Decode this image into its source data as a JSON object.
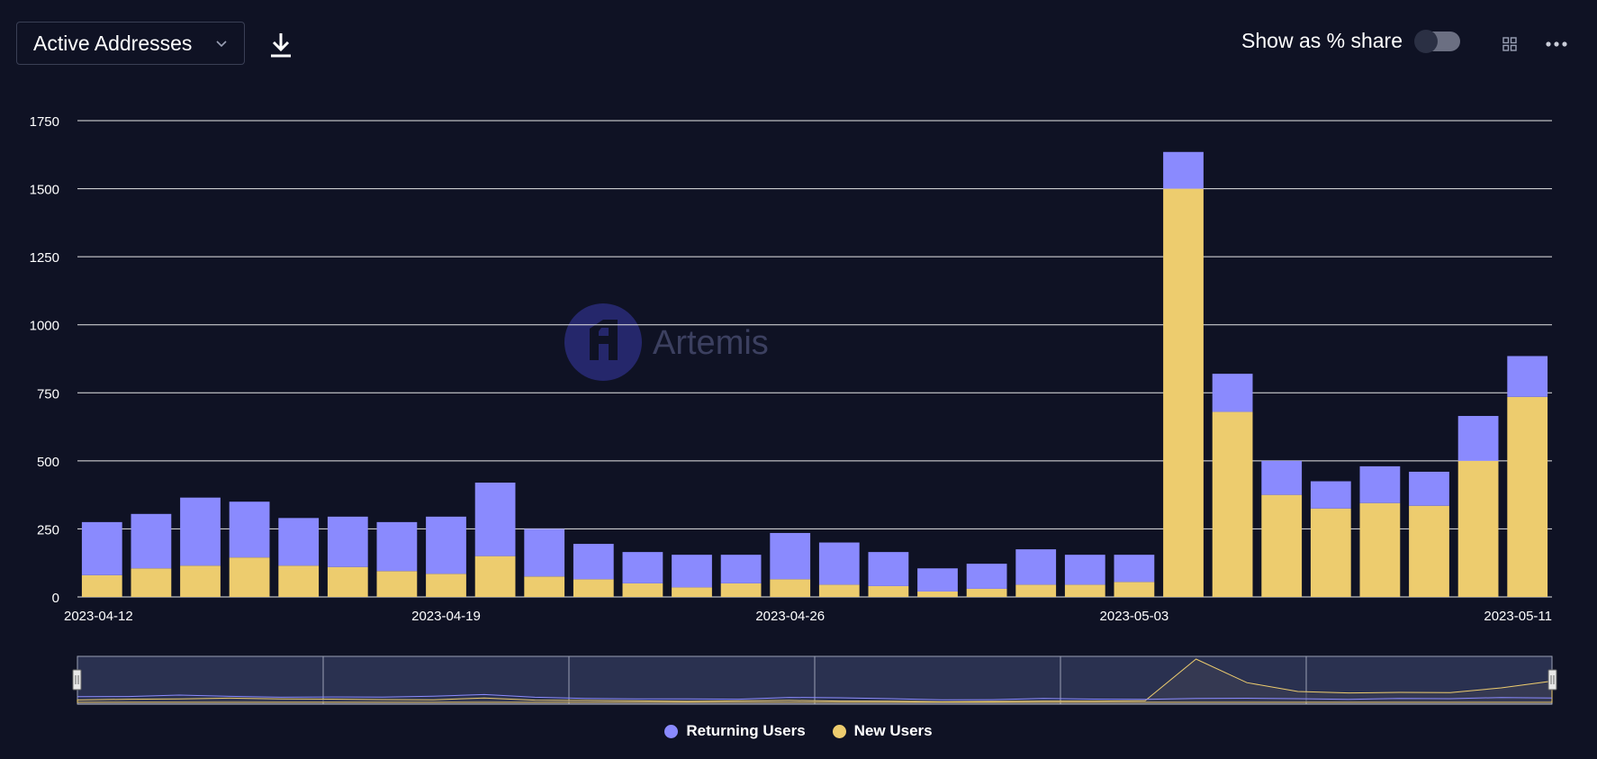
{
  "header": {
    "metric_label": "Active Addresses",
    "share_label": "Show as % share",
    "share_enabled": false
  },
  "icons": {
    "select_chevron": "chevron-down-icon",
    "download": "download-icon",
    "grid": "grid-icon",
    "more": "more-horizontal-icon"
  },
  "watermark": {
    "text": "Artemis"
  },
  "colors": {
    "background": "#0f1224",
    "returning": "#8a8afe",
    "new": "#edcc6e",
    "gridline": "#e6e6e6"
  },
  "chart_data": {
    "type": "bar",
    "stacked": true,
    "x": [
      "2023-04-12",
      "2023-04-13",
      "2023-04-14",
      "2023-04-15",
      "2023-04-16",
      "2023-04-17",
      "2023-04-18",
      "2023-04-19",
      "2023-04-20",
      "2023-04-21",
      "2023-04-22",
      "2023-04-23",
      "2023-04-24",
      "2023-04-25",
      "2023-04-26",
      "2023-04-27",
      "2023-04-28",
      "2023-04-29",
      "2023-04-30",
      "2023-05-01",
      "2023-05-02",
      "2023-05-03",
      "2023-05-04",
      "2023-05-05",
      "2023-05-06",
      "2023-05-07",
      "2023-05-08",
      "2023-05-09",
      "2023-05-10",
      "2023-05-11"
    ],
    "x_tick_labels": [
      "2023-04-12",
      "2023-04-19",
      "2023-04-26",
      "2023-05-03",
      "2023-05-11"
    ],
    "y_ticks": [
      0,
      250,
      500,
      750,
      1000,
      1250,
      1500,
      1750
    ],
    "ylim": [
      0,
      1750
    ],
    "grid": true,
    "legend_position": "bottom",
    "series": [
      {
        "name": "New Users",
        "color": "#edcc6e",
        "values": [
          80,
          105,
          115,
          145,
          115,
          110,
          95,
          85,
          150,
          75,
          65,
          50,
          35,
          50,
          65,
          45,
          40,
          20,
          30,
          45,
          45,
          55,
          1500,
          680,
          375,
          325,
          345,
          335,
          500,
          735
        ]
      },
      {
        "name": "Returning Users",
        "color": "#8a8afe",
        "values": [
          195,
          200,
          250,
          205,
          175,
          185,
          180,
          210,
          270,
          175,
          130,
          115,
          120,
          105,
          170,
          155,
          125,
          85,
          92,
          130,
          110,
          100,
          135,
          140,
          125,
          100,
          135,
          125,
          165,
          150
        ]
      }
    ],
    "legend": [
      "Returning Users",
      "New Users"
    ]
  }
}
